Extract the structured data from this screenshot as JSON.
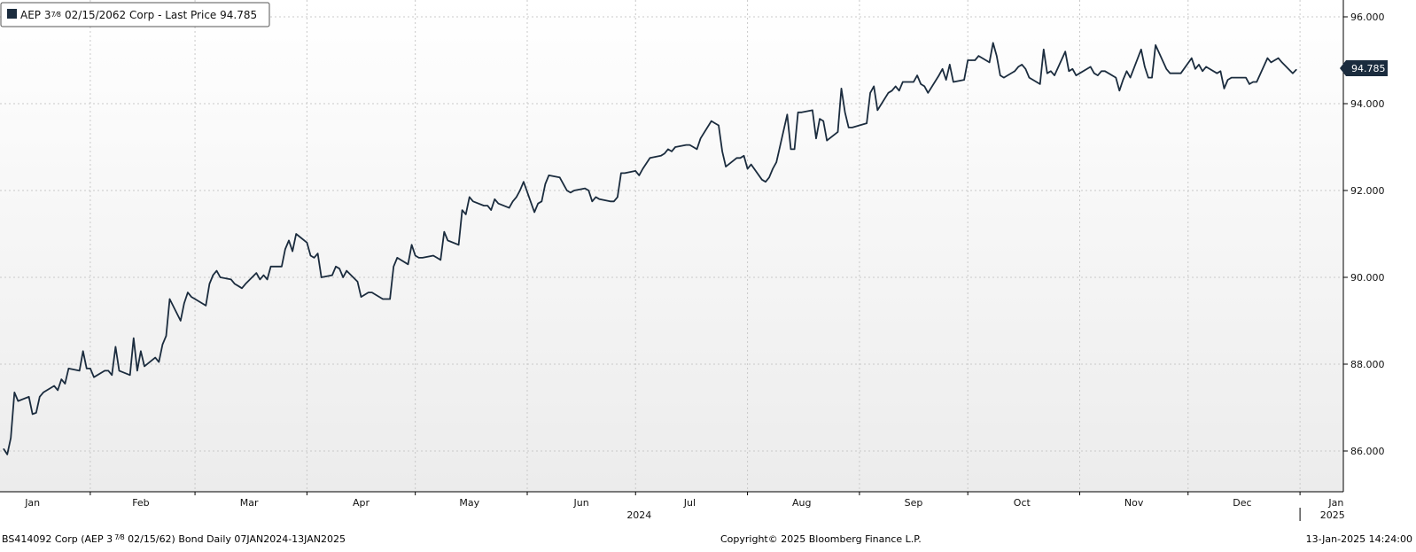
{
  "legend": {
    "prefix": "AEP 3",
    "coupon_fraction": "7⁄8",
    "suffix": "02/15/2062 Corp - Last Price 94.785"
  },
  "last_price_tag": "94.785",
  "footer": {
    "left_prefix": "BS414092 Corp (AEP 3",
    "left_fraction": "7⁄8",
    "left_suffix": "02/15/62) Bond  Daily 07JAN2024-13JAN2025",
    "center": "Copyright© 2025 Bloomberg Finance L.P.",
    "right": "13-Jan-2025 14:24:00"
  },
  "colors": {
    "line": "#1b2c3e",
    "grid": "#c9c9c9",
    "axis": "#000000"
  },
  "chart_data": {
    "type": "line",
    "title": "",
    "xlabel": "",
    "ylabel": "",
    "ylim": [
      85.0,
      96.2
    ],
    "y_ticks": [
      86.0,
      88.0,
      90.0,
      92.0,
      94.0,
      96.0
    ],
    "y_tick_labels": [
      "86.000",
      "88.000",
      "90.000",
      "92.000",
      "94.000",
      "96.000"
    ],
    "y_axis_position": "right",
    "grid": true,
    "legend_position": "top-left",
    "x_range": [
      "2024-01-07",
      "2025-01-13"
    ],
    "month_ticks": [
      {
        "date": "2024-01-16",
        "label": "Jan"
      },
      {
        "date": "2024-02-15",
        "label": "Feb"
      },
      {
        "date": "2024-03-16",
        "label": "Mar"
      },
      {
        "date": "2024-04-16",
        "label": "Apr"
      },
      {
        "date": "2024-05-16",
        "label": "May"
      },
      {
        "date": "2024-06-16",
        "label": "Jun"
      },
      {
        "date": "2024-07-16",
        "label": "Jul"
      },
      {
        "date": "2024-08-16",
        "label": "Aug"
      },
      {
        "date": "2024-09-16",
        "label": "Sep"
      },
      {
        "date": "2024-10-16",
        "label": "Oct"
      },
      {
        "date": "2024-11-16",
        "label": "Nov"
      },
      {
        "date": "2024-12-16",
        "label": "Dec"
      },
      {
        "date": "2025-01-11",
        "label": "Jan"
      }
    ],
    "month_boundaries": [
      "2024-02-01",
      "2024-03-01",
      "2024-04-01",
      "2024-05-01",
      "2024-06-01",
      "2024-07-01",
      "2024-08-01",
      "2024-09-01",
      "2024-10-01",
      "2024-11-01",
      "2024-12-01",
      "2025-01-01"
    ],
    "year_labels": [
      {
        "date": "2024-07-02",
        "label": "2024"
      },
      {
        "date": "2025-01-10",
        "label": "2025"
      }
    ],
    "series": [
      {
        "name": "AEP 3 7/8 02/15/2062 Corp - Last Price",
        "last_value": 94.785,
        "points": [
          [
            "2024-01-08",
            86.05
          ],
          [
            "2024-01-09",
            85.92
          ],
          [
            "2024-01-10",
            86.3
          ],
          [
            "2024-01-11",
            87.35
          ],
          [
            "2024-01-12",
            87.15
          ],
          [
            "2024-01-15",
            87.25
          ],
          [
            "2024-01-16",
            86.85
          ],
          [
            "2024-01-17",
            86.88
          ],
          [
            "2024-01-18",
            87.25
          ],
          [
            "2024-01-19",
            87.35
          ],
          [
            "2024-01-22",
            87.5
          ],
          [
            "2024-01-23",
            87.4
          ],
          [
            "2024-01-24",
            87.65
          ],
          [
            "2024-01-25",
            87.55
          ],
          [
            "2024-01-26",
            87.9
          ],
          [
            "2024-01-29",
            87.85
          ],
          [
            "2024-01-30",
            88.3
          ],
          [
            "2024-01-31",
            87.9
          ],
          [
            "2024-02-01",
            87.9
          ],
          [
            "2024-02-02",
            87.7
          ],
          [
            "2024-02-05",
            87.85
          ],
          [
            "2024-02-06",
            87.85
          ],
          [
            "2024-02-07",
            87.75
          ],
          [
            "2024-02-08",
            88.4
          ],
          [
            "2024-02-09",
            87.85
          ],
          [
            "2024-02-12",
            87.75
          ],
          [
            "2024-02-13",
            88.6
          ],
          [
            "2024-02-14",
            87.85
          ],
          [
            "2024-02-15",
            88.3
          ],
          [
            "2024-02-16",
            87.95
          ],
          [
            "2024-02-19",
            88.15
          ],
          [
            "2024-02-20",
            88.05
          ],
          [
            "2024-02-21",
            88.45
          ],
          [
            "2024-02-22",
            88.65
          ],
          [
            "2024-02-23",
            89.5
          ],
          [
            "2024-02-26",
            89.0
          ],
          [
            "2024-02-27",
            89.4
          ],
          [
            "2024-02-28",
            89.65
          ],
          [
            "2024-02-29",
            89.55
          ],
          [
            "2024-03-01",
            89.5
          ],
          [
            "2024-03-04",
            89.35
          ],
          [
            "2024-03-05",
            89.85
          ],
          [
            "2024-03-06",
            90.05
          ],
          [
            "2024-03-07",
            90.15
          ],
          [
            "2024-03-08",
            90.0
          ],
          [
            "2024-03-11",
            89.95
          ],
          [
            "2024-03-12",
            89.85
          ],
          [
            "2024-03-13",
            89.8
          ],
          [
            "2024-03-14",
            89.75
          ],
          [
            "2024-03-15",
            89.85
          ],
          [
            "2024-03-18",
            90.1
          ],
          [
            "2024-03-19",
            89.95
          ],
          [
            "2024-03-20",
            90.05
          ],
          [
            "2024-03-21",
            89.95
          ],
          [
            "2024-03-22",
            90.25
          ],
          [
            "2024-03-25",
            90.25
          ],
          [
            "2024-03-26",
            90.65
          ],
          [
            "2024-03-27",
            90.85
          ],
          [
            "2024-03-28",
            90.6
          ],
          [
            "2024-03-29",
            91.0
          ],
          [
            "2024-04-01",
            90.8
          ],
          [
            "2024-04-02",
            90.5
          ],
          [
            "2024-04-03",
            90.45
          ],
          [
            "2024-04-04",
            90.55
          ],
          [
            "2024-04-05",
            90.0
          ],
          [
            "2024-04-08",
            90.05
          ],
          [
            "2024-04-09",
            90.25
          ],
          [
            "2024-04-10",
            90.2
          ],
          [
            "2024-04-11",
            90.0
          ],
          [
            "2024-04-12",
            90.15
          ],
          [
            "2024-04-15",
            89.9
          ],
          [
            "2024-04-16",
            89.55
          ],
          [
            "2024-04-17",
            89.6
          ],
          [
            "2024-04-18",
            89.65
          ],
          [
            "2024-04-19",
            89.65
          ],
          [
            "2024-04-22",
            89.5
          ],
          [
            "2024-04-23",
            89.5
          ],
          [
            "2024-04-24",
            89.5
          ],
          [
            "2024-04-25",
            90.25
          ],
          [
            "2024-04-26",
            90.45
          ],
          [
            "2024-04-29",
            90.3
          ],
          [
            "2024-04-30",
            90.75
          ],
          [
            "2024-05-01",
            90.5
          ],
          [
            "2024-05-02",
            90.45
          ],
          [
            "2024-05-03",
            90.45
          ],
          [
            "2024-05-06",
            90.5
          ],
          [
            "2024-05-07",
            90.45
          ],
          [
            "2024-05-08",
            90.4
          ],
          [
            "2024-05-09",
            91.05
          ],
          [
            "2024-05-10",
            90.85
          ],
          [
            "2024-05-13",
            90.75
          ],
          [
            "2024-05-14",
            91.55
          ],
          [
            "2024-05-15",
            91.45
          ],
          [
            "2024-05-16",
            91.85
          ],
          [
            "2024-05-17",
            91.75
          ],
          [
            "2024-05-20",
            91.65
          ],
          [
            "2024-05-21",
            91.65
          ],
          [
            "2024-05-22",
            91.55
          ],
          [
            "2024-05-23",
            91.8
          ],
          [
            "2024-05-24",
            91.7
          ],
          [
            "2024-05-27",
            91.6
          ],
          [
            "2024-05-28",
            91.75
          ],
          [
            "2024-05-29",
            91.85
          ],
          [
            "2024-05-30",
            92.0
          ],
          [
            "2024-05-31",
            92.2
          ],
          [
            "2024-06-03",
            91.5
          ],
          [
            "2024-06-04",
            91.7
          ],
          [
            "2024-06-05",
            91.75
          ],
          [
            "2024-06-06",
            92.15
          ],
          [
            "2024-06-07",
            92.35
          ],
          [
            "2024-06-10",
            92.3
          ],
          [
            "2024-06-11",
            92.15
          ],
          [
            "2024-06-12",
            92.0
          ],
          [
            "2024-06-13",
            91.95
          ],
          [
            "2024-06-14",
            92.0
          ],
          [
            "2024-06-17",
            92.05
          ],
          [
            "2024-06-18",
            92.0
          ],
          [
            "2024-06-19",
            91.75
          ],
          [
            "2024-06-20",
            91.85
          ],
          [
            "2024-06-21",
            91.8
          ],
          [
            "2024-06-24",
            91.75
          ],
          [
            "2024-06-25",
            91.75
          ],
          [
            "2024-06-26",
            91.85
          ],
          [
            "2024-06-27",
            92.4
          ],
          [
            "2024-06-28",
            92.4
          ],
          [
            "2024-07-01",
            92.45
          ],
          [
            "2024-07-02",
            92.35
          ],
          [
            "2024-07-03",
            92.5
          ],
          [
            "2024-07-05",
            92.75
          ],
          [
            "2024-07-08",
            92.8
          ],
          [
            "2024-07-09",
            92.85
          ],
          [
            "2024-07-10",
            92.95
          ],
          [
            "2024-07-11",
            92.9
          ],
          [
            "2024-07-12",
            93.0
          ],
          [
            "2024-07-15",
            93.05
          ],
          [
            "2024-07-16",
            93.05
          ],
          [
            "2024-07-17",
            93.0
          ],
          [
            "2024-07-18",
            92.95
          ],
          [
            "2024-07-19",
            93.2
          ],
          [
            "2024-07-22",
            93.6
          ],
          [
            "2024-07-23",
            93.55
          ],
          [
            "2024-07-24",
            93.5
          ],
          [
            "2024-07-25",
            92.9
          ],
          [
            "2024-07-26",
            92.55
          ],
          [
            "2024-07-29",
            92.75
          ],
          [
            "2024-07-30",
            92.75
          ],
          [
            "2024-07-31",
            92.8
          ],
          [
            "2024-08-01",
            92.5
          ],
          [
            "2024-08-02",
            92.6
          ],
          [
            "2024-08-05",
            92.25
          ],
          [
            "2024-08-06",
            92.2
          ],
          [
            "2024-08-07",
            92.3
          ],
          [
            "2024-08-08",
            92.5
          ],
          [
            "2024-08-09",
            92.65
          ],
          [
            "2024-08-12",
            93.75
          ],
          [
            "2024-08-13",
            92.95
          ],
          [
            "2024-08-14",
            92.95
          ],
          [
            "2024-08-15",
            93.8
          ],
          [
            "2024-08-16",
            93.8
          ],
          [
            "2024-08-19",
            93.85
          ],
          [
            "2024-08-20",
            93.2
          ],
          [
            "2024-08-21",
            93.65
          ],
          [
            "2024-08-22",
            93.6
          ],
          [
            "2024-08-23",
            93.15
          ],
          [
            "2024-08-26",
            93.35
          ],
          [
            "2024-08-27",
            94.35
          ],
          [
            "2024-08-28",
            93.8
          ],
          [
            "2024-08-29",
            93.45
          ],
          [
            "2024-08-30",
            93.45
          ],
          [
            "2024-09-03",
            93.55
          ],
          [
            "2024-09-04",
            94.25
          ],
          [
            "2024-09-05",
            94.4
          ],
          [
            "2024-09-06",
            93.85
          ],
          [
            "2024-09-09",
            94.25
          ],
          [
            "2024-09-10",
            94.3
          ],
          [
            "2024-09-11",
            94.4
          ],
          [
            "2024-09-12",
            94.3
          ],
          [
            "2024-09-13",
            94.5
          ],
          [
            "2024-09-16",
            94.5
          ],
          [
            "2024-09-17",
            94.65
          ],
          [
            "2024-09-18",
            94.45
          ],
          [
            "2024-09-19",
            94.4
          ],
          [
            "2024-09-20",
            94.25
          ],
          [
            "2024-09-23",
            94.65
          ],
          [
            "2024-09-24",
            94.8
          ],
          [
            "2024-09-25",
            94.55
          ],
          [
            "2024-09-26",
            94.9
          ],
          [
            "2024-09-27",
            94.5
          ],
          [
            "2024-09-30",
            94.55
          ],
          [
            "2024-10-01",
            95.0
          ],
          [
            "2024-10-02",
            95.0
          ],
          [
            "2024-10-03",
            95.0
          ],
          [
            "2024-10-04",
            95.1
          ],
          [
            "2024-10-07",
            94.95
          ],
          [
            "2024-10-08",
            95.4
          ],
          [
            "2024-10-09",
            95.1
          ],
          [
            "2024-10-10",
            94.65
          ],
          [
            "2024-10-11",
            94.6
          ],
          [
            "2024-10-14",
            94.75
          ],
          [
            "2024-10-15",
            94.85
          ],
          [
            "2024-10-16",
            94.9
          ],
          [
            "2024-10-17",
            94.8
          ],
          [
            "2024-10-18",
            94.6
          ],
          [
            "2024-10-21",
            94.45
          ],
          [
            "2024-10-22",
            95.25
          ],
          [
            "2024-10-23",
            94.7
          ],
          [
            "2024-10-24",
            94.75
          ],
          [
            "2024-10-25",
            94.65
          ],
          [
            "2024-10-28",
            95.2
          ],
          [
            "2024-10-29",
            94.75
          ],
          [
            "2024-10-30",
            94.8
          ],
          [
            "2024-10-31",
            94.65
          ],
          [
            "2024-11-01",
            94.7
          ],
          [
            "2024-11-04",
            94.85
          ],
          [
            "2024-11-05",
            94.7
          ],
          [
            "2024-11-06",
            94.65
          ],
          [
            "2024-11-07",
            94.75
          ],
          [
            "2024-11-08",
            94.75
          ],
          [
            "2024-11-11",
            94.6
          ],
          [
            "2024-11-12",
            94.3
          ],
          [
            "2024-11-13",
            94.55
          ],
          [
            "2024-11-14",
            94.75
          ],
          [
            "2024-11-15",
            94.6
          ],
          [
            "2024-11-18",
            95.25
          ],
          [
            "2024-11-19",
            94.85
          ],
          [
            "2024-11-20",
            94.6
          ],
          [
            "2024-11-21",
            94.6
          ],
          [
            "2024-11-22",
            95.35
          ],
          [
            "2024-11-25",
            94.8
          ],
          [
            "2024-11-26",
            94.7
          ],
          [
            "2024-11-27",
            94.7
          ],
          [
            "2024-11-29",
            94.7
          ],
          [
            "2024-12-02",
            95.05
          ],
          [
            "2024-12-03",
            94.8
          ],
          [
            "2024-12-04",
            94.9
          ],
          [
            "2024-12-05",
            94.75
          ],
          [
            "2024-12-06",
            94.85
          ],
          [
            "2024-12-09",
            94.7
          ],
          [
            "2024-12-10",
            94.75
          ],
          [
            "2024-12-11",
            94.35
          ],
          [
            "2024-12-12",
            94.55
          ],
          [
            "2024-12-13",
            94.6
          ],
          [
            "2024-12-16",
            94.6
          ],
          [
            "2024-12-17",
            94.6
          ],
          [
            "2024-12-18",
            94.45
          ],
          [
            "2024-12-19",
            94.5
          ],
          [
            "2024-12-20",
            94.5
          ],
          [
            "2024-12-23",
            95.05
          ],
          [
            "2024-12-24",
            94.95
          ],
          [
            "2024-12-26",
            95.05
          ],
          [
            "2024-12-27",
            94.95
          ],
          [
            "2024-12-30",
            94.7
          ],
          [
            "2024-12-31",
            94.785
          ]
        ]
      }
    ]
  }
}
